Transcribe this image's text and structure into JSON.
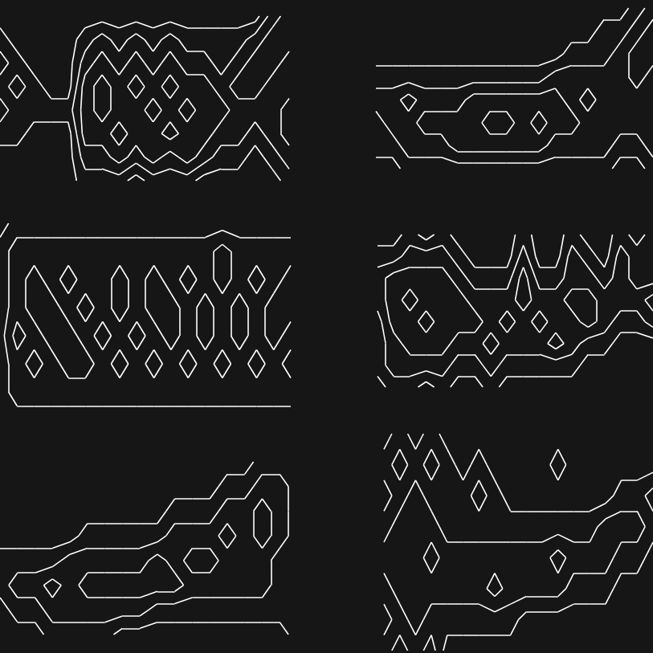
{
  "chart_data": [
    {
      "type": "contour",
      "color": "#ffffff",
      "tick_labels": false,
      "levels": [
        0.5,
        1.5,
        2.5,
        3.5
      ],
      "cells": [
        [
          0,
          0,
          0,
          0,
          0,
          0,
          0,
          0,
          0,
          0,
          0,
          0,
          0,
          0,
          0,
          0,
          2,
          3
        ],
        [
          1,
          0,
          0,
          0,
          0,
          1,
          2,
          1,
          2,
          1,
          2,
          1,
          1,
          1,
          1,
          2,
          3,
          3
        ],
        [
          2,
          1,
          0,
          0,
          0,
          2,
          3,
          2,
          3,
          2,
          3,
          2,
          2,
          1,
          2,
          3,
          3,
          2
        ],
        [
          1,
          2,
          1,
          0,
          0,
          3,
          4,
          3,
          4,
          3,
          4,
          3,
          3,
          2,
          3,
          3,
          2,
          2
        ],
        [
          2,
          1,
          1,
          1,
          1,
          3,
          4,
          3,
          3,
          4,
          3,
          4,
          3,
          3,
          2,
          2,
          2,
          3
        ],
        [
          1,
          1,
          0,
          0,
          0,
          3,
          3,
          4,
          3,
          3,
          4,
          3,
          3,
          2,
          2,
          1,
          2,
          3
        ],
        [
          0,
          0,
          0,
          0,
          0,
          2,
          2,
          3,
          2,
          3,
          2,
          3,
          2,
          1,
          1,
          0,
          1,
          2
        ],
        [
          0,
          0,
          0,
          0,
          0,
          1,
          1,
          1,
          0,
          1,
          1,
          1,
          0,
          0,
          0,
          0,
          0,
          1
        ]
      ]
    },
    {
      "type": "contour",
      "color": "#ffffff",
      "tick_labels": false,
      "levels": [
        0.5,
        1.5,
        2.5,
        3.5
      ],
      "cells": [
        [
          0,
          0,
          0,
          0,
          0,
          0,
          0,
          0,
          0,
          0,
          0,
          0,
          0,
          0,
          0,
          0,
          1,
          2
        ],
        [
          0,
          0,
          0,
          0,
          0,
          0,
          0,
          0,
          0,
          0,
          0,
          0,
          0,
          0,
          1,
          1,
          2,
          3
        ],
        [
          0,
          0,
          0,
          0,
          0,
          0,
          0,
          0,
          0,
          0,
          0,
          0,
          1,
          1,
          1,
          2,
          3,
          3
        ],
        [
          1,
          1,
          1,
          1,
          1,
          1,
          1,
          1,
          1,
          1,
          1,
          2,
          2,
          2,
          2,
          2,
          3,
          2
        ],
        [
          2,
          2,
          3,
          2,
          2,
          2,
          3,
          3,
          3,
          3,
          3,
          3,
          2,
          3,
          2,
          2,
          2,
          2
        ],
        [
          1,
          2,
          2,
          3,
          3,
          3,
          3,
          4,
          4,
          3,
          4,
          3,
          3,
          2,
          2,
          2,
          2,
          2
        ],
        [
          1,
          1,
          2,
          2,
          2,
          3,
          3,
          3,
          3,
          3,
          3,
          2,
          2,
          2,
          2,
          1,
          1,
          2
        ],
        [
          0,
          0,
          1,
          1,
          1,
          1,
          1,
          1,
          1,
          1,
          1,
          1,
          1,
          1,
          1,
          0,
          0,
          1
        ]
      ]
    },
    {
      "type": "contour",
      "color": "#ffffff",
      "tick_labels": false,
      "levels": [
        0.5,
        1.5,
        2.5,
        3.5
      ],
      "cells": [
        [
          0,
          1,
          1,
          1,
          1,
          1,
          1,
          1,
          1,
          1,
          1,
          1,
          1,
          1,
          1,
          1,
          1,
          1
        ],
        [
          1,
          2,
          2,
          2,
          2,
          2,
          2,
          2,
          2,
          2,
          2,
          2,
          2,
          3,
          2,
          2,
          2,
          2
        ],
        [
          1,
          2,
          3,
          2,
          3,
          2,
          2,
          3,
          2,
          3,
          2,
          3,
          2,
          3,
          2,
          3,
          2,
          3
        ],
        [
          1,
          2,
          3,
          3,
          2,
          3,
          2,
          3,
          2,
          3,
          3,
          2,
          3,
          2,
          3,
          2,
          3,
          3
        ],
        [
          1,
          3,
          2,
          3,
          3,
          2,
          3,
          2,
          3,
          2,
          3,
          2,
          3,
          2,
          3,
          2,
          3,
          2
        ],
        [
          1,
          2,
          3,
          2,
          3,
          3,
          2,
          3,
          2,
          3,
          2,
          3,
          2,
          3,
          2,
          3,
          2,
          3
        ],
        [
          1,
          2,
          2,
          2,
          2,
          2,
          2,
          2,
          2,
          2,
          2,
          2,
          2,
          2,
          2,
          2,
          2,
          2
        ],
        [
          1,
          1,
          1,
          1,
          1,
          1,
          1,
          1,
          1,
          1,
          1,
          1,
          1,
          1,
          1,
          1,
          1,
          1
        ]
      ]
    },
    {
      "type": "contour",
      "color": "#ffffff",
      "tick_labels": false,
      "levels": [
        0.5,
        1.5,
        2.5,
        3.5
      ],
      "cells": [
        [
          0,
          0,
          1,
          0,
          1,
          0,
          0,
          0,
          0,
          1,
          0,
          0,
          1,
          0,
          0,
          1,
          0,
          1
        ],
        [
          1,
          1,
          2,
          2,
          2,
          1,
          0,
          0,
          0,
          2,
          0,
          0,
          2,
          1,
          0,
          2,
          1,
          1
        ],
        [
          2,
          3,
          3,
          3,
          3,
          2,
          1,
          1,
          1,
          3,
          1,
          1,
          2,
          2,
          1,
          2,
          1,
          1
        ],
        [
          2,
          3,
          4,
          3,
          3,
          3,
          2,
          2,
          2,
          3,
          2,
          2,
          3,
          3,
          2,
          2,
          2,
          3
        ],
        [
          1,
          3,
          3,
          4,
          3,
          3,
          3,
          2,
          3,
          2,
          3,
          2,
          2,
          3,
          2,
          1,
          1,
          2
        ],
        [
          1,
          2,
          3,
          3,
          3,
          2,
          2,
          3,
          2,
          2,
          2,
          3,
          2,
          1,
          1,
          0,
          0,
          0
        ],
        [
          1,
          2,
          2,
          2,
          2,
          1,
          1,
          2,
          1,
          1,
          1,
          1,
          1,
          0,
          0,
          0,
          0,
          0
        ],
        [
          0,
          1,
          1,
          0,
          1,
          0,
          0,
          1,
          0,
          0,
          0,
          0,
          0,
          0,
          0,
          0,
          0,
          0
        ]
      ]
    },
    {
      "type": "contour",
      "color": "#ffffff",
      "tick_labels": false,
      "levels": [
        0.5,
        1.5,
        2.5,
        3.5
      ],
      "cells": [
        [
          0,
          0,
          0,
          0,
          0,
          0,
          0,
          0,
          0,
          0,
          0,
          0,
          0,
          0,
          0,
          1,
          1,
          1
        ],
        [
          0,
          0,
          0,
          0,
          0,
          0,
          0,
          0,
          0,
          0,
          0,
          0,
          0,
          1,
          1,
          2,
          2,
          1
        ],
        [
          0,
          0,
          0,
          0,
          0,
          0,
          0,
          0,
          0,
          0,
          1,
          1,
          1,
          2,
          2,
          3,
          2,
          1
        ],
        [
          0,
          0,
          0,
          0,
          0,
          1,
          1,
          1,
          1,
          1,
          2,
          2,
          2,
          3,
          2,
          3,
          2,
          1
        ],
        [
          1,
          1,
          1,
          1,
          2,
          2,
          2,
          2,
          2,
          3,
          2,
          3,
          3,
          2,
          2,
          2,
          1,
          1
        ],
        [
          1,
          2,
          2,
          3,
          2,
          3,
          3,
          3,
          3,
          3,
          3,
          2,
          2,
          2,
          2,
          2,
          1,
          1
        ],
        [
          0,
          1,
          1,
          2,
          2,
          2,
          2,
          2,
          2,
          1,
          1,
          1,
          1,
          1,
          1,
          1,
          1,
          1
        ],
        [
          0,
          0,
          0,
          1,
          1,
          1,
          1,
          0,
          0,
          0,
          0,
          0,
          0,
          0,
          0,
          0,
          0,
          1
        ]
      ]
    },
    {
      "type": "contour",
      "color": "#ffffff",
      "tick_labels": false,
      "levels": [
        0.5,
        1.5,
        2.5,
        3.5
      ],
      "cells": [
        [
          2,
          1,
          2,
          1,
          0,
          0,
          0,
          0,
          0,
          0,
          0,
          0,
          0,
          0,
          0,
          0,
          0,
          0
        ],
        [
          1,
          2,
          1,
          2,
          1,
          0,
          1,
          0,
          0,
          0,
          0,
          1,
          0,
          0,
          0,
          0,
          0,
          0
        ],
        [
          2,
          1,
          2,
          1,
          1,
          1,
          2,
          1,
          0,
          0,
          0,
          0,
          0,
          0,
          0,
          1,
          1,
          2
        ],
        [
          1,
          2,
          2,
          2,
          1,
          1,
          1,
          1,
          1,
          1,
          1,
          1,
          1,
          1,
          2,
          2,
          2,
          1
        ],
        [
          2,
          2,
          2,
          3,
          2,
          2,
          2,
          2,
          2,
          2,
          2,
          3,
          2,
          2,
          2,
          1,
          1,
          0
        ],
        [
          1,
          2,
          2,
          2,
          2,
          2,
          2,
          3,
          2,
          2,
          2,
          2,
          1,
          1,
          1,
          0,
          0,
          0
        ],
        [
          2,
          1,
          2,
          1,
          1,
          1,
          1,
          1,
          1,
          0,
          0,
          0,
          0,
          0,
          0,
          0,
          0,
          0
        ],
        [
          1,
          2,
          1,
          2,
          0,
          0,
          0,
          0,
          0,
          0,
          0,
          0,
          0,
          0,
          0,
          0,
          0,
          0
        ]
      ]
    }
  ]
}
